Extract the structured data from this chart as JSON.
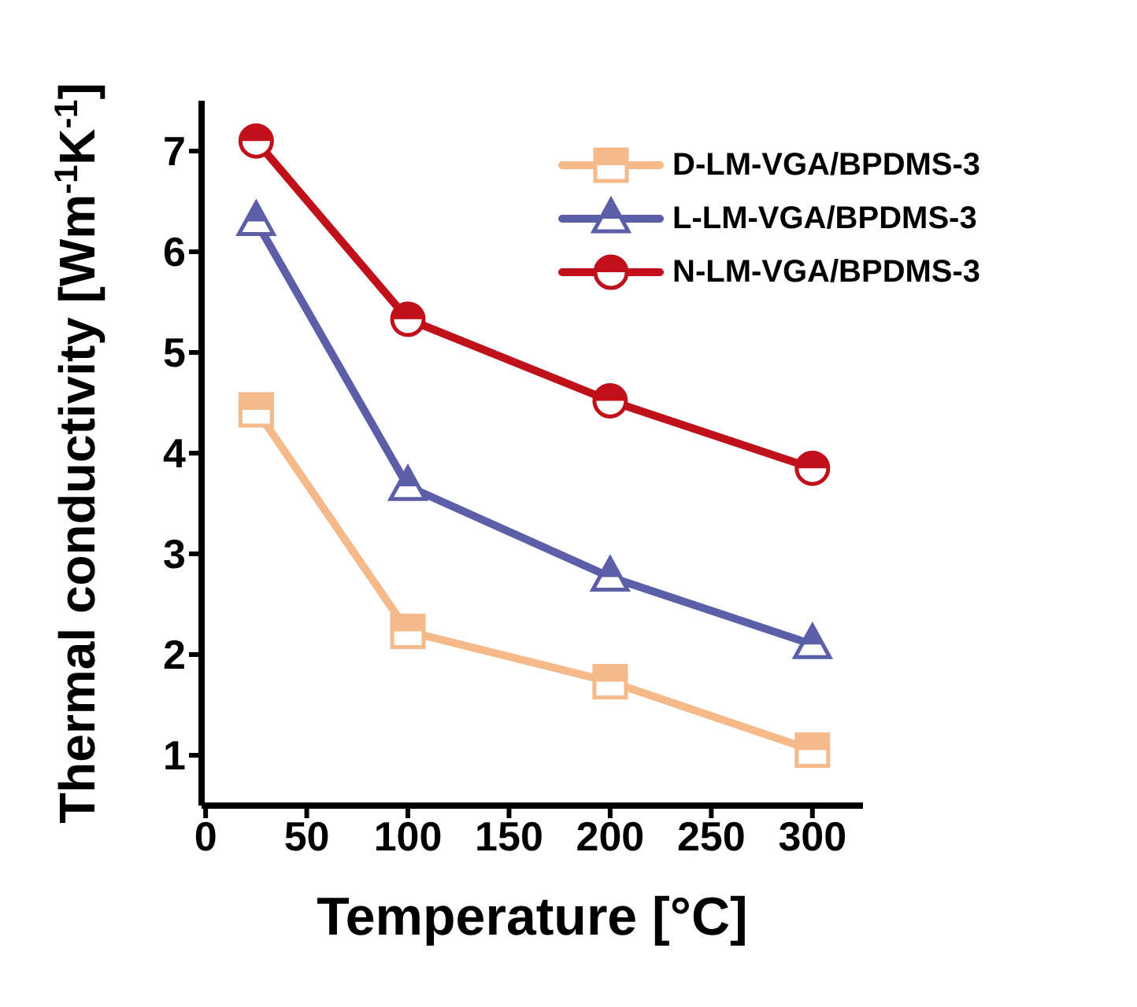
{
  "chart_data": {
    "type": "line",
    "xlabel": "Temperature [°C]",
    "ylabel": "Thermal conductivity [Wm$^{-1}$K$^{-1}$]",
    "x": [
      25,
      100,
      200,
      300
    ],
    "series": [
      {
        "name": "D-LM-VGA/BPDMS-3",
        "color": "#f5b98a",
        "marker": "square",
        "values": [
          4.43,
          2.23,
          1.73,
          1.05
        ]
      },
      {
        "name": "L-LM-VGA/BPDMS-3",
        "color": "#5c5fa8",
        "marker": "triangle",
        "values": [
          6.3,
          3.67,
          2.77,
          2.1
        ]
      },
      {
        "name": "N-LM-VGA/BPDMS-3",
        "color": "#c0101a",
        "marker": "circle",
        "values": [
          7.1,
          5.33,
          4.52,
          3.85
        ]
      }
    ],
    "xlim": [
      -2,
      325
    ],
    "xticks": [
      0,
      50,
      100,
      150,
      200,
      250,
      300
    ],
    "ylim": [
      0.5,
      7.5
    ],
    "yticks": [
      1,
      2,
      3,
      4,
      5,
      6,
      7
    ],
    "grid": false,
    "legend": "top right",
    "line_style": "solid"
  }
}
